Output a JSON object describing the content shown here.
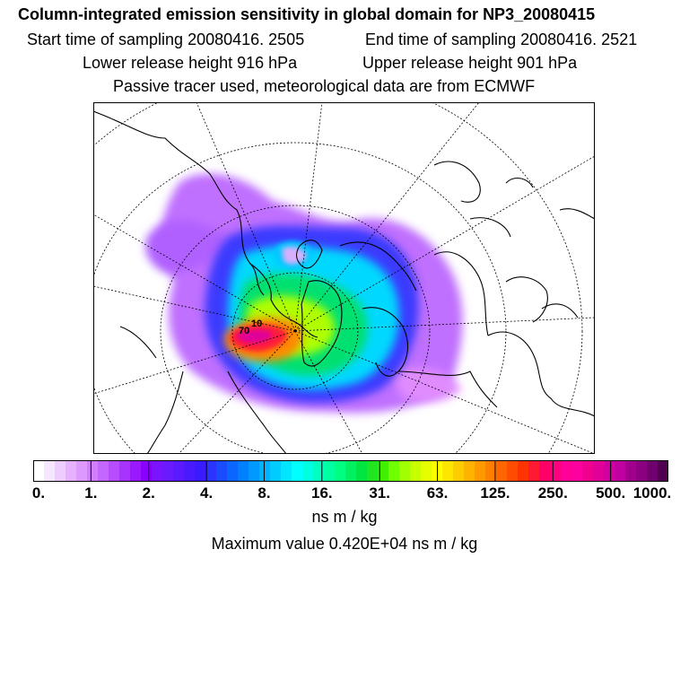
{
  "header": {
    "title": "Column-integrated emission sensitivity in global domain for NP3_20080415",
    "start_time": "Start time of sampling 20080416.  2505",
    "end_time": "End time of sampling 20080416.  2521",
    "lower_release": "Lower release height  916 hPa",
    "upper_release": "Upper release height  901 hPa",
    "tracer_note": "Passive tracer used, meteorological data are from ECMWF"
  },
  "map": {
    "contour_labels": [
      "70",
      "10"
    ]
  },
  "colorbar": {
    "colors": [
      "#ffffff",
      "#f6e6ff",
      "#efccff",
      "#e6b2ff",
      "#dd99ff",
      "#d17fff",
      "#c466ff",
      "#b84cff",
      "#a833ff",
      "#9a19ff",
      "#8a00ff",
      "#7a14ff",
      "#6a1aff",
      "#5a1aff",
      "#4a1aff",
      "#3a1aff",
      "#2a33ff",
      "#1a4cff",
      "#0a66ff",
      "#0080ff",
      "#009aff",
      "#00b3ff",
      "#00ccff",
      "#00e6ff",
      "#00ffff",
      "#00ffe0",
      "#00ffc0",
      "#00ffa0",
      "#00ff80",
      "#00f060",
      "#00e640",
      "#20e620",
      "#40f000",
      "#70ff00",
      "#a0ff00",
      "#c8ff00",
      "#e6ff00",
      "#ffff00",
      "#ffe600",
      "#ffcc00",
      "#ffb200",
      "#ff9900",
      "#ff7f00",
      "#ff6600",
      "#ff4c00",
      "#ff3300",
      "#ff1a33",
      "#ff0066",
      "#ff0080",
      "#ff0099",
      "#ff00a0",
      "#f00090",
      "#e00099",
      "#d000a0",
      "#c000a0",
      "#a0008c",
      "#8a0080",
      "#700070",
      "#500050"
    ],
    "tick_labels": [
      "0.",
      "1.",
      "2.",
      "4.",
      "8.",
      "16.",
      "31.",
      "63.",
      "125.",
      "250.",
      "500.",
      "1000."
    ]
  },
  "units": "ns m / kg",
  "maximum_value": "Maximum value  0.420E+04 ns m / kg"
}
